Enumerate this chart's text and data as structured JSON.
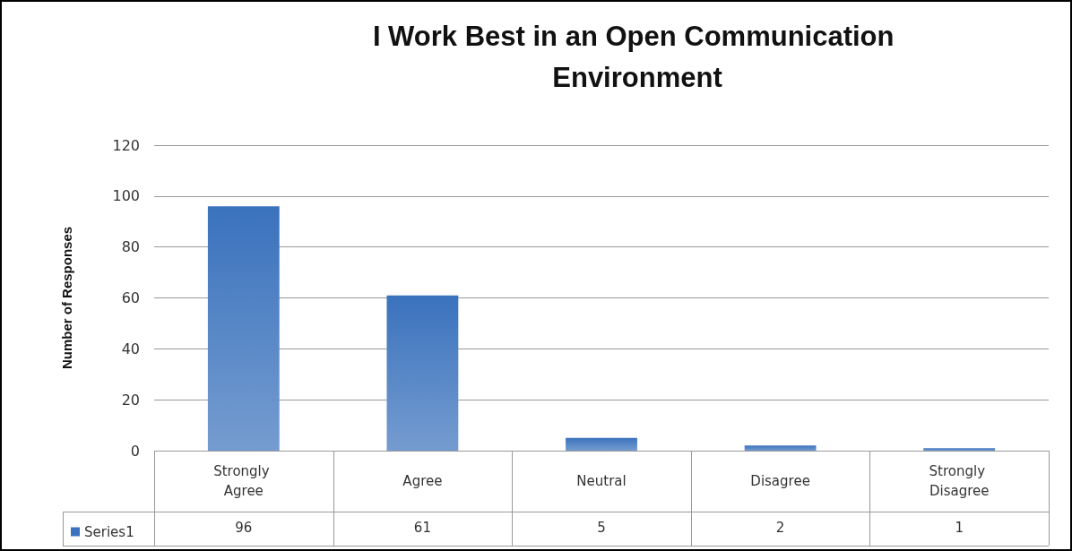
{
  "chart_data": {
    "type": "bar",
    "title": "I Work Best in an Open Communication Environment",
    "ylabel": "Number of Responses",
    "categories": [
      "Strongly Agree",
      "Agree",
      "Neutral",
      "Disagree",
      "Strongly Disagree"
    ],
    "series": [
      {
        "name": "Series1",
        "color": "#3a72bd",
        "values": [
          96,
          61,
          5,
          2,
          1
        ]
      }
    ],
    "ylim": [
      0,
      120
    ],
    "yticks": [
      0,
      20,
      40,
      60,
      80,
      100,
      120
    ],
    "grid": "y",
    "data_labels": true,
    "legend": "bottom"
  }
}
